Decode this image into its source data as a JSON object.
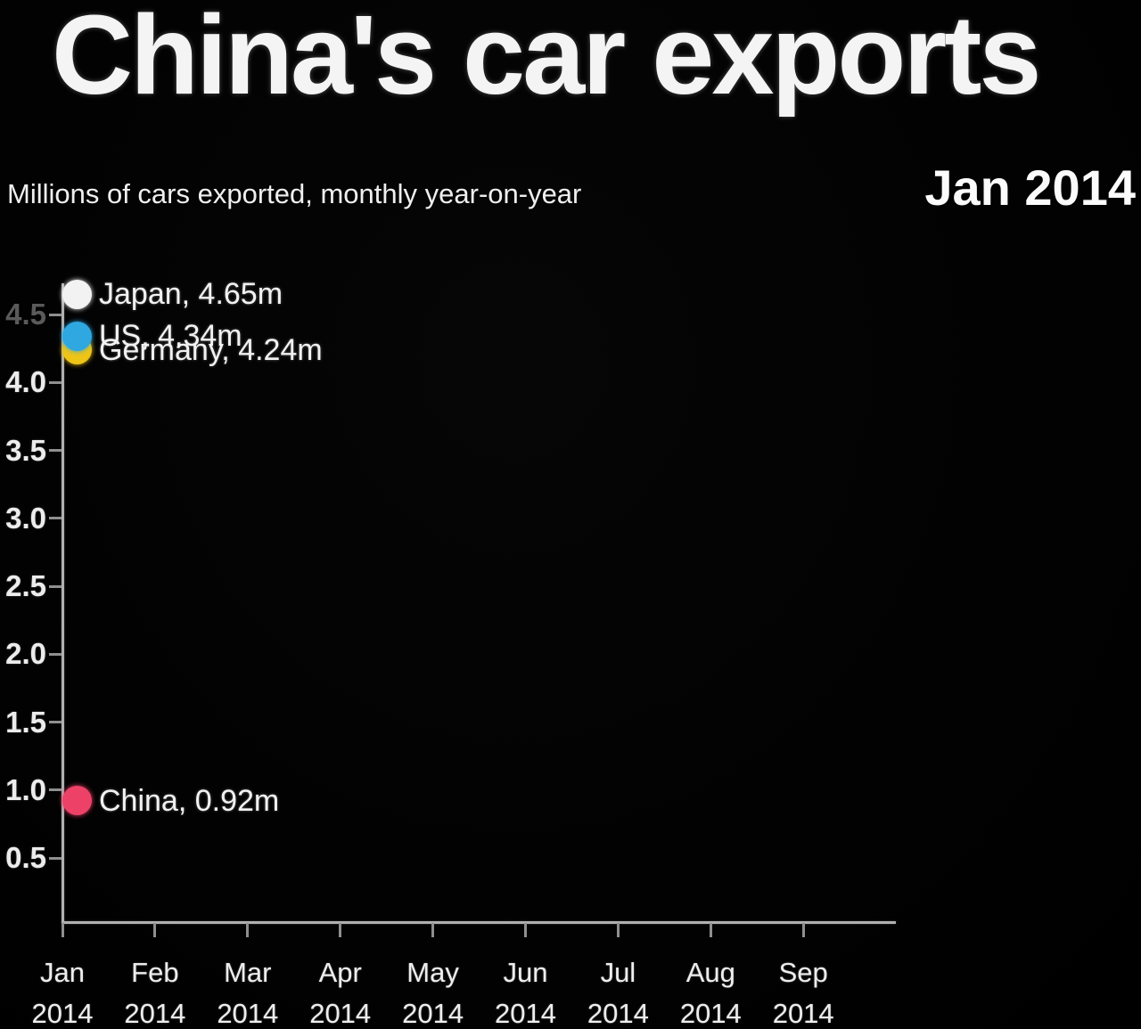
{
  "header": {
    "title": "China's car exports",
    "subtitle": "Millions of cars exported, monthly year-on-year",
    "date_label": "Jan 2014"
  },
  "chart_data": {
    "type": "scatter",
    "title": "China's car exports",
    "subtitle": "Millions of cars exported, monthly year-on-year",
    "frame_label": "Jan 2014",
    "unit": "millions of cars exported",
    "grid": false,
    "legend_position": "labels-at-points",
    "x_axis": {
      "ticks": [
        {
          "month": "Jan",
          "year": "2014"
        },
        {
          "month": "Feb",
          "year": "2014"
        },
        {
          "month": "Mar",
          "year": "2014"
        },
        {
          "month": "Apr",
          "year": "2014"
        },
        {
          "month": "May",
          "year": "2014"
        },
        {
          "month": "Jun",
          "year": "2014"
        },
        {
          "month": "Jul",
          "year": "2014"
        },
        {
          "month": "Aug",
          "year": "2014"
        },
        {
          "month": "Sep",
          "year": "2014"
        }
      ],
      "current": "Jan 2014"
    },
    "y_axis": {
      "ticks": [
        4.5,
        4.0,
        3.5,
        3.0,
        2.5,
        2.0,
        1.5,
        1.0,
        0.5
      ],
      "dim_ticks": [
        4.5
      ],
      "range": [
        0,
        4.75
      ]
    },
    "series": [
      {
        "name": "Japan",
        "color": "#f2f2f2",
        "x": "Jan 2014",
        "value": 4.65,
        "label": "Japan, 4.65m"
      },
      {
        "name": "US",
        "color": "#2fa8e1",
        "x": "Jan 2014",
        "value": 4.34,
        "label": "US, 4.34m"
      },
      {
        "name": "Germany",
        "color": "#eec417",
        "x": "Jan 2014",
        "value": 4.24,
        "label": "Germany, 4.24m"
      },
      {
        "name": "China",
        "color": "#ee4168",
        "x": "Jan 2014",
        "value": 0.92,
        "label": "China, 0.92m"
      }
    ]
  }
}
